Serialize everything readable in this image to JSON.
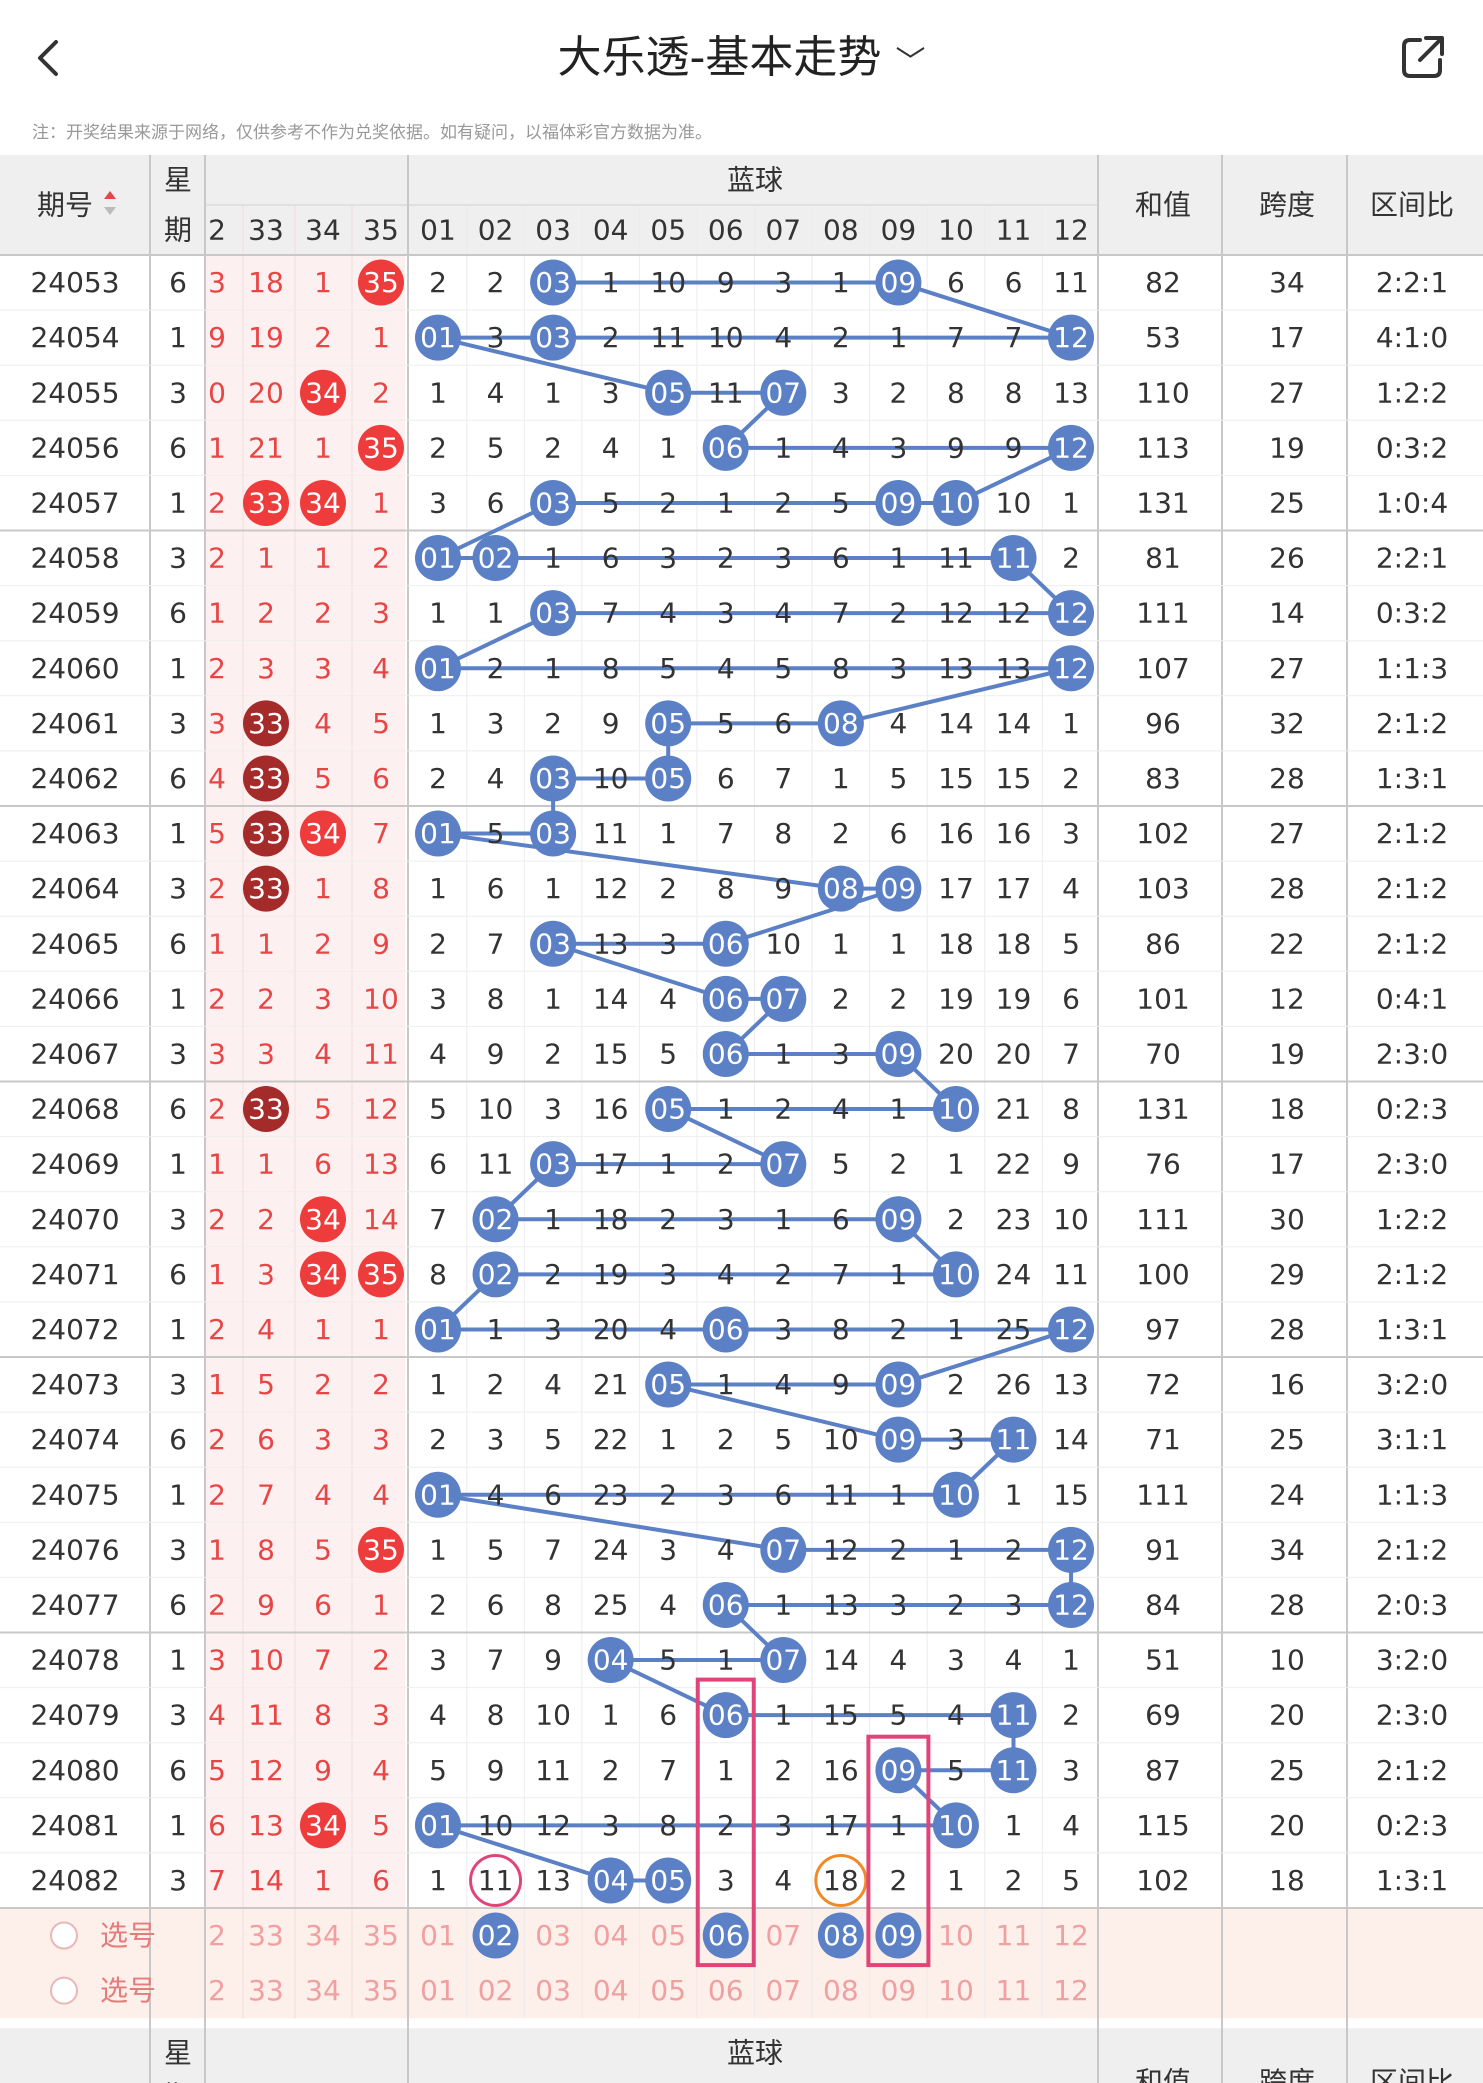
{
  "header": {
    "back_icon": "chevron-left-icon",
    "title": "大乐透-基本走势",
    "title_dropdown_icon": "chevron-down-icon",
    "share_icon": "share-external-icon"
  },
  "note": "注：开奖结果来源于网络，仅供参考不作为兑奖依据。如有疑问，以福体彩官方数据为准。",
  "table": {
    "col_issue": "期号",
    "sort_icon": "sort-updown-icon",
    "col_week_top": "星",
    "col_week_bottom": "期",
    "front_headers": [
      "2",
      "33",
      "34",
      "35"
    ],
    "blue_title": "蓝球",
    "blue_headers": [
      "01",
      "02",
      "03",
      "04",
      "05",
      "06",
      "07",
      "08",
      "09",
      "10",
      "11",
      "12"
    ],
    "col_sum": "和值",
    "col_span": "跨度",
    "col_ratio": "区间比",
    "footer_issue": "-",
    "rows": [
      {
        "issue": "24053",
        "week": "6",
        "front": [
          "3",
          "18",
          "1",
          "35"
        ],
        "blue": [
          "2",
          "2",
          "03",
          "1",
          "10",
          "9",
          "3",
          "1",
          "09",
          "6",
          "6",
          "11"
        ],
        "sum": "82",
        "span": "34",
        "ratio": "2:2:1"
      },
      {
        "issue": "24054",
        "week": "1",
        "front": [
          "9",
          "19",
          "2",
          "1"
        ],
        "blue": [
          "01",
          "3",
          "03",
          "2",
          "11",
          "10",
          "4",
          "2",
          "1",
          "7",
          "7",
          "12"
        ],
        "sum": "53",
        "span": "17",
        "ratio": "4:1:0"
      },
      {
        "issue": "24055",
        "week": "3",
        "front": [
          "0",
          "20",
          "34",
          "2"
        ],
        "blue": [
          "1",
          "4",
          "1",
          "3",
          "05",
          "11",
          "07",
          "3",
          "2",
          "8",
          "8",
          "13"
        ],
        "sum": "110",
        "span": "27",
        "ratio": "1:2:2"
      },
      {
        "issue": "24056",
        "week": "6",
        "front": [
          "1",
          "21",
          "1",
          "35"
        ],
        "blue": [
          "2",
          "5",
          "2",
          "4",
          "1",
          "06",
          "1",
          "4",
          "3",
          "9",
          "9",
          "12"
        ],
        "sum": "113",
        "span": "19",
        "ratio": "0:3:2"
      },
      {
        "issue": "24057",
        "week": "1",
        "front": [
          "2",
          "33",
          "34",
          "1"
        ],
        "blue": [
          "3",
          "6",
          "03",
          "5",
          "2",
          "1",
          "2",
          "5",
          "09",
          "10",
          "10",
          "1"
        ],
        "sum": "131",
        "span": "25",
        "ratio": "1:0:4"
      },
      {
        "issue": "24058",
        "week": "3",
        "front": [
          "2",
          "1",
          "1",
          "2"
        ],
        "blue": [
          "01",
          "02",
          "1",
          "6",
          "3",
          "2",
          "3",
          "6",
          "1",
          "11",
          "11",
          "2"
        ],
        "sum": "81",
        "span": "26",
        "ratio": "2:2:1"
      },
      {
        "issue": "24059",
        "week": "6",
        "front": [
          "1",
          "2",
          "2",
          "3"
        ],
        "blue": [
          "1",
          "1",
          "03",
          "7",
          "4",
          "3",
          "4",
          "7",
          "2",
          "12",
          "12",
          "12"
        ],
        "sum": "111",
        "span": "14",
        "ratio": "0:3:2"
      },
      {
        "issue": "24060",
        "week": "1",
        "front": [
          "2",
          "3",
          "3",
          "4"
        ],
        "blue": [
          "01",
          "2",
          "1",
          "8",
          "5",
          "4",
          "5",
          "8",
          "3",
          "13",
          "13",
          "12"
        ],
        "sum": "107",
        "span": "27",
        "ratio": "1:1:3"
      },
      {
        "issue": "24061",
        "week": "3",
        "front": [
          "3",
          "33",
          "4",
          "5"
        ],
        "blue": [
          "1",
          "3",
          "2",
          "9",
          "05",
          "5",
          "6",
          "08",
          "4",
          "14",
          "14",
          "1"
        ],
        "sum": "96",
        "span": "32",
        "ratio": "2:1:2"
      },
      {
        "issue": "24062",
        "week": "6",
        "front": [
          "4",
          "33",
          "5",
          "6"
        ],
        "blue": [
          "2",
          "4",
          "03",
          "10",
          "05",
          "6",
          "7",
          "1",
          "5",
          "15",
          "15",
          "2"
        ],
        "sum": "83",
        "span": "28",
        "ratio": "1:3:1"
      },
      {
        "issue": "24063",
        "week": "1",
        "front": [
          "5",
          "33",
          "34",
          "7"
        ],
        "blue": [
          "01",
          "5",
          "03",
          "11",
          "1",
          "7",
          "8",
          "2",
          "6",
          "16",
          "16",
          "3"
        ],
        "sum": "102",
        "span": "27",
        "ratio": "2:1:2"
      },
      {
        "issue": "24064",
        "week": "3",
        "front": [
          "2",
          "33",
          "1",
          "8"
        ],
        "blue": [
          "1",
          "6",
          "1",
          "12",
          "2",
          "8",
          "9",
          "08",
          "09",
          "17",
          "17",
          "4"
        ],
        "sum": "103",
        "span": "28",
        "ratio": "2:1:2"
      },
      {
        "issue": "24065",
        "week": "6",
        "front": [
          "1",
          "1",
          "2",
          "9"
        ],
        "blue": [
          "2",
          "7",
          "03",
          "13",
          "3",
          "06",
          "10",
          "1",
          "1",
          "18",
          "18",
          "5"
        ],
        "sum": "86",
        "span": "22",
        "ratio": "2:1:2"
      },
      {
        "issue": "24066",
        "week": "1",
        "front": [
          "2",
          "2",
          "3",
          "10"
        ],
        "blue": [
          "3",
          "8",
          "1",
          "14",
          "4",
          "06",
          "07",
          "2",
          "2",
          "19",
          "19",
          "6"
        ],
        "sum": "101",
        "span": "12",
        "ratio": "0:4:1"
      },
      {
        "issue": "24067",
        "week": "3",
        "front": [
          "3",
          "3",
          "4",
          "11"
        ],
        "blue": [
          "4",
          "9",
          "2",
          "15",
          "5",
          "06",
          "1",
          "3",
          "09",
          "20",
          "20",
          "7"
        ],
        "sum": "70",
        "span": "19",
        "ratio": "2:3:0"
      },
      {
        "issue": "24068",
        "week": "6",
        "front": [
          "2",
          "33",
          "5",
          "12"
        ],
        "blue": [
          "5",
          "10",
          "3",
          "16",
          "05",
          "1",
          "2",
          "4",
          "1",
          "10",
          "21",
          "8"
        ],
        "sum": "131",
        "span": "18",
        "ratio": "0:2:3"
      },
      {
        "issue": "24069",
        "week": "1",
        "front": [
          "1",
          "1",
          "6",
          "13"
        ],
        "blue": [
          "6",
          "11",
          "03",
          "17",
          "1",
          "2",
          "07",
          "5",
          "2",
          "1",
          "22",
          "9"
        ],
        "sum": "76",
        "span": "17",
        "ratio": "2:3:0"
      },
      {
        "issue": "24070",
        "week": "3",
        "front": [
          "2",
          "2",
          "34",
          "14"
        ],
        "blue": [
          "7",
          "02",
          "1",
          "18",
          "2",
          "3",
          "1",
          "6",
          "09",
          "2",
          "23",
          "10"
        ],
        "sum": "111",
        "span": "30",
        "ratio": "1:2:2"
      },
      {
        "issue": "24071",
        "week": "6",
        "front": [
          "1",
          "3",
          "34",
          "35"
        ],
        "blue": [
          "8",
          "02",
          "2",
          "19",
          "3",
          "4",
          "2",
          "7",
          "1",
          "10",
          "24",
          "11"
        ],
        "sum": "100",
        "span": "29",
        "ratio": "2:1:2"
      },
      {
        "issue": "24072",
        "week": "1",
        "front": [
          "2",
          "4",
          "1",
          "1"
        ],
        "blue": [
          "01",
          "1",
          "3",
          "20",
          "4",
          "06",
          "3",
          "8",
          "2",
          "1",
          "25",
          "12"
        ],
        "sum": "97",
        "span": "28",
        "ratio": "1:3:1"
      },
      {
        "issue": "24073",
        "week": "3",
        "front": [
          "1",
          "5",
          "2",
          "2"
        ],
        "blue": [
          "1",
          "2",
          "4",
          "21",
          "05",
          "1",
          "4",
          "9",
          "09",
          "2",
          "26",
          "13"
        ],
        "sum": "72",
        "span": "16",
        "ratio": "3:2:0"
      },
      {
        "issue": "24074",
        "week": "6",
        "front": [
          "2",
          "6",
          "3",
          "3"
        ],
        "blue": [
          "2",
          "3",
          "5",
          "22",
          "1",
          "2",
          "5",
          "10",
          "09",
          "3",
          "11",
          "14"
        ],
        "sum": "71",
        "span": "25",
        "ratio": "3:1:1"
      },
      {
        "issue": "24075",
        "week": "1",
        "front": [
          "2",
          "7",
          "4",
          "4"
        ],
        "blue": [
          "01",
          "4",
          "6",
          "23",
          "2",
          "3",
          "6",
          "11",
          "1",
          "10",
          "1",
          "15"
        ],
        "sum": "111",
        "span": "24",
        "ratio": "1:1:3"
      },
      {
        "issue": "24076",
        "week": "3",
        "front": [
          "1",
          "8",
          "5",
          "35"
        ],
        "blue": [
          "1",
          "5",
          "7",
          "24",
          "3",
          "4",
          "07",
          "12",
          "2",
          "1",
          "2",
          "12"
        ],
        "sum": "91",
        "span": "34",
        "ratio": "2:1:2"
      },
      {
        "issue": "24077",
        "week": "6",
        "front": [
          "2",
          "9",
          "6",
          "1"
        ],
        "blue": [
          "2",
          "6",
          "8",
          "25",
          "4",
          "06",
          "1",
          "13",
          "3",
          "2",
          "3",
          "12"
        ],
        "sum": "84",
        "span": "28",
        "ratio": "2:0:3"
      },
      {
        "issue": "24078",
        "week": "1",
        "front": [
          "3",
          "10",
          "7",
          "2"
        ],
        "blue": [
          "3",
          "7",
          "9",
          "04",
          "5",
          "1",
          "07",
          "14",
          "4",
          "3",
          "4",
          "1"
        ],
        "sum": "51",
        "span": "10",
        "ratio": "3:2:0"
      },
      {
        "issue": "24079",
        "week": "3",
        "front": [
          "4",
          "11",
          "8",
          "3"
        ],
        "blue": [
          "4",
          "8",
          "10",
          "1",
          "6",
          "06",
          "1",
          "15",
          "5",
          "4",
          "11",
          "2"
        ],
        "sum": "69",
        "span": "20",
        "ratio": "2:3:0"
      },
      {
        "issue": "24080",
        "week": "6",
        "front": [
          "5",
          "12",
          "9",
          "4"
        ],
        "blue": [
          "5",
          "9",
          "11",
          "2",
          "7",
          "1",
          "2",
          "16",
          "09",
          "5",
          "11",
          "3"
        ],
        "sum": "87",
        "span": "25",
        "ratio": "2:1:2"
      },
      {
        "issue": "24081",
        "week": "1",
        "front": [
          "6",
          "13",
          "34",
          "5"
        ],
        "blue": [
          "01",
          "10",
          "12",
          "3",
          "8",
          "2",
          "3",
          "17",
          "1",
          "10",
          "1",
          "4"
        ],
        "sum": "115",
        "span": "20",
        "ratio": "0:2:3"
      },
      {
        "issue": "24082",
        "week": "3",
        "front": [
          "7",
          "14",
          "1",
          "6"
        ],
        "blue": [
          "1",
          "11",
          "13",
          "04",
          "05",
          "3",
          "4",
          "18",
          "2",
          "1",
          "2",
          "5"
        ],
        "sum": "102",
        "span": "18",
        "ratio": "1:3:1"
      }
    ],
    "pick_label": "选号",
    "pick_radio_icon": "radio-circle-icon",
    "pick_rows": [
      {
        "front": [
          "2",
          "33",
          "34",
          "35"
        ],
        "blue": [
          "01",
          "02",
          "03",
          "04",
          "05",
          "06",
          "07",
          "08",
          "09",
          "10",
          "11",
          "12"
        ],
        "selected": [
          "02",
          "06",
          "08",
          "09"
        ]
      },
      {
        "front": [
          "2",
          "33",
          "34",
          "35"
        ],
        "blue": [
          "01",
          "02",
          "03",
          "04",
          "05",
          "06",
          "07",
          "08",
          "09",
          "10",
          "11",
          "12"
        ],
        "selected": []
      }
    ]
  },
  "colors": {
    "blue_ball": "#5b80c6",
    "blue_line": "#5b80c6",
    "red_ball": "#ee3b3b",
    "dark_red_ball": "#a52a2a",
    "header_bg": "#efefef",
    "front_bg": "#fdf0f0",
    "front_text": "#e84545",
    "pick_bg": "#fdefe9",
    "pink_box": "#e0457a",
    "orange_circle": "#f08a24"
  }
}
